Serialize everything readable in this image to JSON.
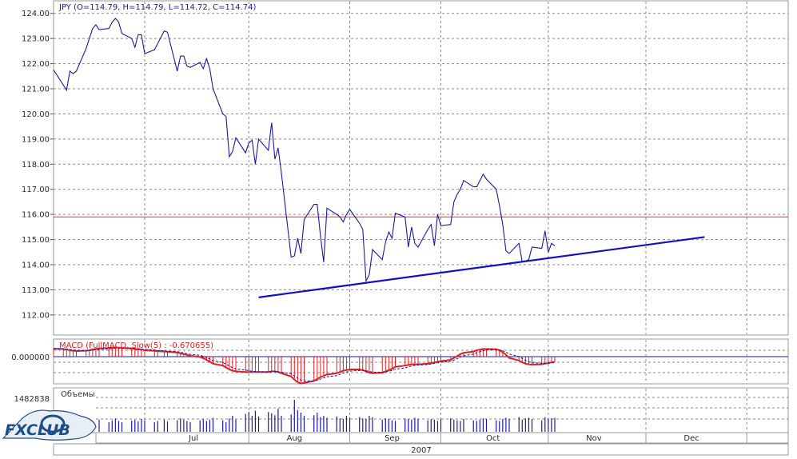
{
  "chart_data": [
    {
      "panel": "price",
      "type": "line",
      "title": "JPY (O=114.79, H=114.79, L=114.72, C=114.74)",
      "ylim": [
        111.2,
        124.5
      ],
      "y_ticks": [
        "124.00",
        "123.00",
        "122.00",
        "121.00",
        "120.00",
        "119.00",
        "118.00",
        "117.00",
        "116.00",
        "115.00",
        "114.00",
        "113.00",
        "112.00"
      ],
      "x_labels": [
        "Jul",
        "Aug",
        "Sep",
        "Oct",
        "Nov",
        "Dec"
      ],
      "year_label": "2007",
      "grid": true,
      "series_color": "#1a1aa8",
      "series": [
        {
          "x": [
            "2007-06-01",
            "2007-06-04",
            "2007-06-05",
            "2007-06-06",
            "2007-06-07",
            "2007-06-08",
            "2007-06-11",
            "2007-06-12",
            "2007-06-13",
            "2007-06-14",
            "2007-06-15",
            "2007-06-18",
            "2007-06-19",
            "2007-06-20",
            "2007-06-21",
            "2007-06-22",
            "2007-06-25",
            "2007-06-26",
            "2007-06-27",
            "2007-06-28",
            "2007-06-29",
            "2007-07-02",
            "2007-07-03",
            "2007-07-05",
            "2007-07-06",
            "2007-07-09",
            "2007-07-10",
            "2007-07-11",
            "2007-07-12",
            "2007-07-13",
            "2007-07-16",
            "2007-07-17",
            "2007-07-18",
            "2007-07-19",
            "2007-07-20",
            "2007-07-23",
            "2007-07-24",
            "2007-07-25",
            "2007-07-26",
            "2007-07-27",
            "2007-07-30",
            "2007-07-31",
            "2007-08-01",
            "2007-08-02",
            "2007-08-03",
            "2007-08-06",
            "2007-08-07",
            "2007-08-08",
            "2007-08-09",
            "2007-08-10",
            "2007-08-13",
            "2007-08-14",
            "2007-08-15",
            "2007-08-16",
            "2007-08-17",
            "2007-08-20",
            "2007-08-21",
            "2007-08-22",
            "2007-08-23",
            "2007-08-24",
            "2007-08-27",
            "2007-08-28",
            "2007-08-29",
            "2007-08-30",
            "2007-08-31",
            "2007-09-03",
            "2007-09-04",
            "2007-09-05",
            "2007-09-06",
            "2007-09-07",
            "2007-09-10",
            "2007-09-11",
            "2007-09-12",
            "2007-09-13",
            "2007-09-14",
            "2007-09-17",
            "2007-09-18",
            "2007-09-19",
            "2007-09-20",
            "2007-09-21",
            "2007-09-24",
            "2007-09-25",
            "2007-09-26",
            "2007-09-27",
            "2007-09-28",
            "2007-10-01",
            "2007-10-02",
            "2007-10-03",
            "2007-10-04",
            "2007-10-05",
            "2007-10-08",
            "2007-10-09",
            "2007-10-10",
            "2007-10-11",
            "2007-10-12",
            "2007-10-15",
            "2007-10-16",
            "2007-10-17",
            "2007-10-18",
            "2007-10-19",
            "2007-10-22",
            "2007-10-23",
            "2007-10-24",
            "2007-10-25",
            "2007-10-26",
            "2007-10-29",
            "2007-10-30",
            "2007-10-31",
            "2007-11-01",
            "2007-11-02"
          ],
          "values": [
            121.75,
            121.15,
            120.95,
            121.7,
            121.6,
            121.7,
            122.6,
            123.0,
            123.4,
            123.55,
            123.35,
            123.4,
            123.65,
            123.8,
            123.65,
            123.2,
            123.0,
            122.65,
            123.15,
            123.15,
            122.4,
            122.55,
            122.8,
            123.3,
            123.25,
            121.7,
            122.3,
            122.3,
            121.9,
            121.85,
            122.05,
            121.8,
            122.2,
            121.8,
            121.0,
            120.0,
            119.9,
            118.3,
            118.5,
            119.05,
            118.45,
            118.85,
            118.95,
            118.0,
            119.0,
            118.55,
            119.65,
            118.2,
            118.65,
            117.65,
            114.3,
            114.35,
            115.05,
            114.45,
            115.8,
            116.4,
            116.4,
            115.15,
            114.1,
            116.25,
            116.0,
            115.9,
            115.7,
            116.0,
            116.2,
            115.65,
            115.4,
            113.35,
            113.6,
            114.6,
            114.2,
            114.9,
            115.3,
            115.05,
            116.05,
            115.9,
            114.7,
            115.5,
            114.85,
            114.7,
            115.4,
            115.6,
            114.75,
            116.0,
            115.55,
            115.6,
            116.5,
            116.8,
            117.0,
            117.35,
            117.1,
            117.1,
            117.35,
            117.6,
            117.4,
            117.0,
            116.35,
            115.6,
            114.55,
            114.45,
            114.85,
            114.1,
            114.15,
            114.2,
            114.7,
            114.65,
            115.35,
            114.5,
            114.85,
            114.75
          ]
        }
      ],
      "annotations": [
        {
          "type": "horizontal_line",
          "value": 115.9,
          "color": "#e03030"
        },
        {
          "type": "trend_line",
          "from": {
            "x": "2007-08-03",
            "y": 112.7
          },
          "to": {
            "x": "2007-12-18",
            "y": 115.1
          },
          "color": "#1010c8"
        }
      ]
    },
    {
      "panel": "macd",
      "type": "bar",
      "title": "MACD (FullMACD, Slow(5) : -0.670655)",
      "y_tick": "0.000000",
      "bar_color": "#e02020",
      "signal_color": "#1a1aa8",
      "values": [
        0.62,
        0.6,
        0.55,
        0.5,
        0.46,
        0.44,
        0.46,
        0.5,
        0.56,
        0.6,
        0.64,
        0.68,
        0.7,
        0.72,
        0.7,
        0.68,
        0.64,
        0.6,
        0.58,
        0.55,
        0.5,
        0.45,
        0.42,
        0.4,
        0.38,
        0.32,
        0.26,
        0.2,
        0.14,
        0.06,
        -0.02,
        -0.12,
        -0.25,
        -0.4,
        -0.55,
        -0.7,
        -0.85,
        -1.0,
        -1.1,
        -1.15,
        -1.2,
        -1.2,
        -1.2,
        -1.2,
        -1.2,
        -1.2,
        -1.15,
        -1.15,
        -1.2,
        -1.3,
        -1.55,
        -1.8,
        -2.0,
        -2.1,
        -2.05,
        -1.9,
        -1.75,
        -1.6,
        -1.5,
        -1.4,
        -1.3,
        -1.2,
        -1.1,
        -1.05,
        -1.0,
        -1.0,
        -1.05,
        -1.15,
        -1.25,
        -1.3,
        -1.25,
        -1.15,
        -1.05,
        -0.95,
        -0.8,
        -0.7,
        -0.65,
        -0.6,
        -0.6,
        -0.6,
        -0.55,
        -0.5,
        -0.45,
        -0.4,
        -0.35,
        -0.25,
        -0.1,
        0.05,
        0.2,
        0.3,
        0.4,
        0.5,
        0.55,
        0.6,
        0.6,
        0.58,
        0.5,
        0.35,
        0.15,
        -0.1,
        -0.3,
        -0.45,
        -0.55,
        -0.6,
        -0.62,
        -0.6,
        -0.55,
        -0.5,
        -0.45,
        -0.4
      ]
    },
    {
      "panel": "volume",
      "type": "bar",
      "title": "Объемы",
      "y_tick": "1482838",
      "bar_color": "#1a1aa8",
      "values": [
        0.3,
        0.32,
        0.35,
        0.3,
        0.28,
        0.33,
        0.36,
        0.4,
        0.32,
        0.35,
        0.38,
        0.3,
        0.36,
        0.42,
        0.34,
        0.3,
        0.35,
        0.38,
        0.33,
        0.4,
        0.36,
        0.3,
        0.34,
        0.38,
        0.32,
        0.36,
        0.42,
        0.38,
        0.34,
        0.3,
        0.36,
        0.4,
        0.34,
        0.38,
        0.44,
        0.36,
        0.3,
        0.42,
        0.5,
        0.38,
        0.56,
        0.62,
        0.5,
        0.66,
        0.48,
        0.62,
        0.58,
        0.52,
        0.72,
        0.5,
        0.54,
        1.0,
        0.68,
        0.6,
        0.5,
        0.52,
        0.6,
        0.46,
        0.5,
        0.44,
        0.48,
        0.42,
        0.4,
        0.5,
        0.44,
        0.46,
        0.42,
        0.4,
        0.5,
        0.46,
        0.38,
        0.42,
        0.4,
        0.36,
        0.34,
        0.42,
        0.4,
        0.38,
        0.44,
        0.4,
        0.36,
        0.4,
        0.38,
        0.34,
        0.4,
        0.42,
        0.38,
        0.36,
        0.34,
        0.4,
        0.36,
        0.34,
        0.38,
        0.42,
        0.4,
        0.36,
        0.34,
        0.4,
        0.44,
        0.4,
        0.46,
        0.38,
        0.42,
        0.44,
        0.4,
        0.36,
        0.46,
        0.4,
        0.42,
        0.44
      ]
    }
  ],
  "logo": {
    "text": "FXCLUB",
    "color": "#1e4d8c"
  }
}
